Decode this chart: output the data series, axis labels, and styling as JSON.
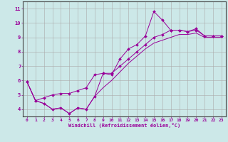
{
  "xlabel": "Windchill (Refroidissement éolien,°C)",
  "background_color": "#cce8e8",
  "line_color": "#990099",
  "grid_color": "#aaaaaa",
  "xlim": [
    -0.5,
    23.5
  ],
  "ylim": [
    3.5,
    11.5
  ],
  "xticks": [
    0,
    1,
    2,
    3,
    4,
    5,
    6,
    7,
    8,
    9,
    10,
    11,
    12,
    13,
    14,
    15,
    16,
    17,
    18,
    19,
    20,
    21,
    22,
    23
  ],
  "yticks": [
    4,
    5,
    6,
    7,
    8,
    9,
    10,
    11
  ],
  "x_data": [
    0,
    1,
    2,
    3,
    4,
    5,
    6,
    7,
    8,
    9,
    10,
    11,
    12,
    13,
    14,
    15,
    16,
    17,
    18,
    19,
    20,
    21,
    22,
    23
  ],
  "line1_y": [
    5.9,
    4.6,
    4.4,
    4.0,
    4.1,
    3.7,
    4.1,
    4.0,
    4.9,
    6.5,
    6.4,
    7.5,
    8.2,
    8.5,
    9.1,
    10.8,
    10.2,
    9.5,
    9.5,
    9.4,
    9.6,
    9.1,
    9.1,
    9.1
  ],
  "line2_y": [
    5.9,
    4.6,
    4.8,
    5.0,
    5.1,
    5.1,
    5.3,
    5.5,
    6.4,
    6.5,
    6.5,
    7.0,
    7.5,
    8.0,
    8.5,
    9.0,
    9.2,
    9.5,
    9.5,
    9.4,
    9.5,
    9.1,
    9.1,
    9.1
  ],
  "line3_y": [
    5.9,
    4.6,
    4.4,
    4.0,
    4.1,
    3.7,
    4.1,
    4.0,
    4.9,
    5.5,
    6.0,
    6.6,
    7.2,
    7.7,
    8.2,
    8.6,
    8.8,
    9.0,
    9.2,
    9.2,
    9.3,
    9.0,
    9.0,
    9.0
  ]
}
